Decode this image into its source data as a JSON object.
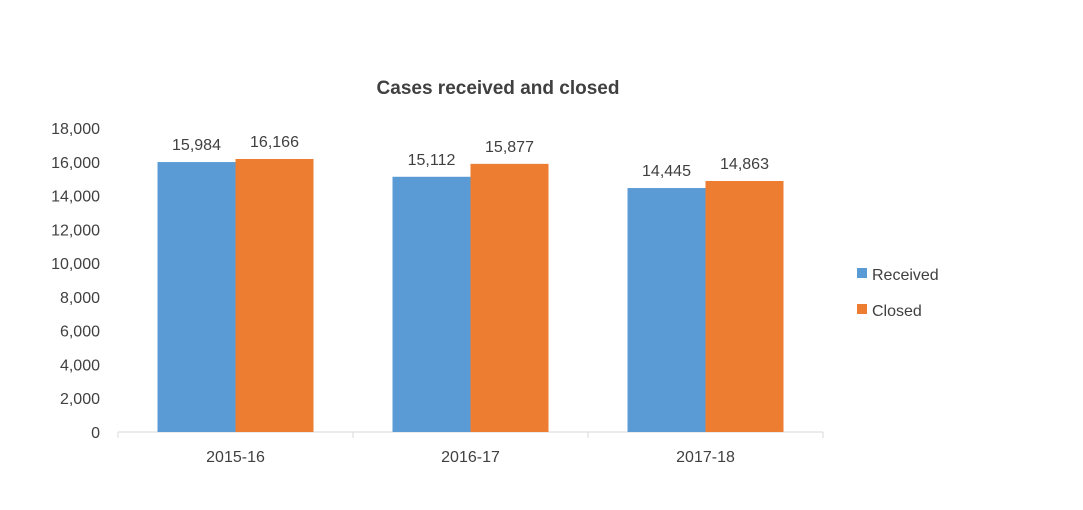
{
  "chart_data": {
    "type": "bar",
    "title": "Cases received and closed",
    "categories": [
      "2015-16",
      "2016-17",
      "2017-18"
    ],
    "series": [
      {
        "name": "Received",
        "values": [
          15984,
          15112,
          14445
        ],
        "labels": [
          "15,984",
          "15,112",
          "14,445"
        ],
        "color": "#5B9BD5"
      },
      {
        "name": "Closed",
        "values": [
          16166,
          15877,
          14863
        ],
        "labels": [
          "16,166",
          "15,877",
          "14,863"
        ],
        "color": "#ED7D31"
      }
    ],
    "ylim": [
      0,
      18000
    ],
    "yticks": [
      0,
      2000,
      4000,
      6000,
      8000,
      10000,
      12000,
      14000,
      16000,
      18000
    ],
    "ytick_labels": [
      "0",
      "2,000",
      "4,000",
      "6,000",
      "8,000",
      "10,000",
      "12,000",
      "14,000",
      "16,000",
      "18,000"
    ],
    "grid": false,
    "legend_position": "right"
  }
}
